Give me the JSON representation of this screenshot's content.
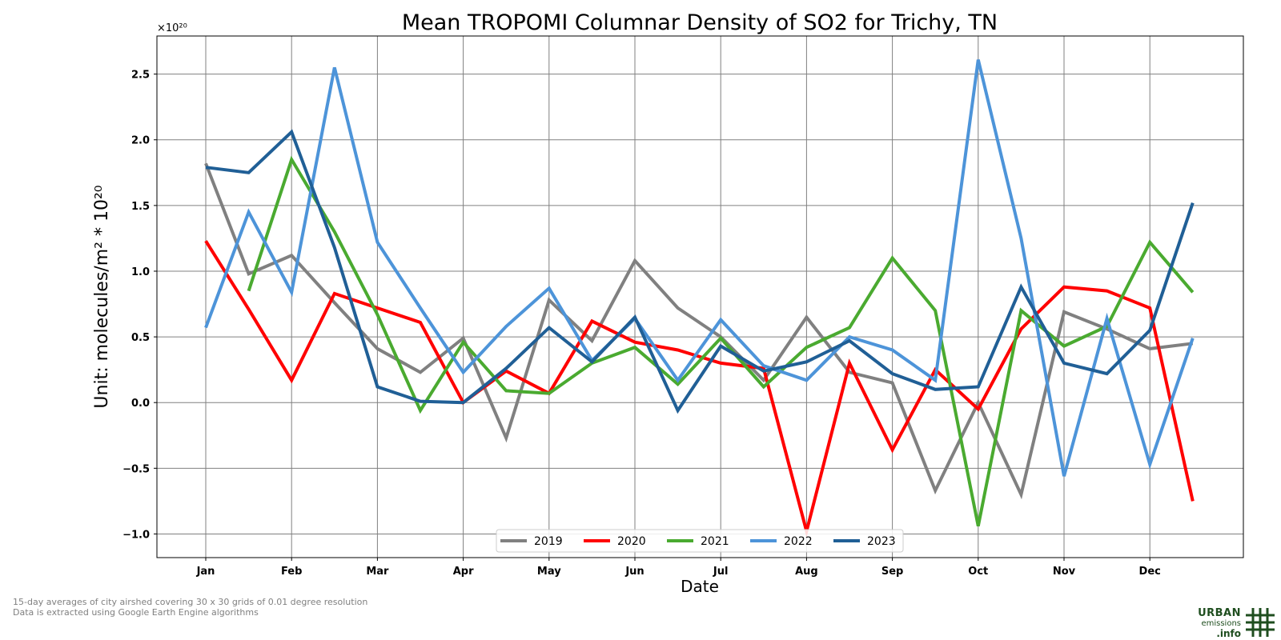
{
  "chart_data": {
    "type": "line",
    "title": "Mean TROPOMI Columnar Density of SO2 for Trichy, TN",
    "xlabel": "Date",
    "ylabel": "Unit: molecules/m² * 10²⁰",
    "scale_label": "×10²⁰",
    "ylim": [
      -1.18,
      2.79
    ],
    "y_ticks": [
      -1.0,
      -0.5,
      0.0,
      0.5,
      1.0,
      1.5,
      2.0,
      2.5
    ],
    "y_tick_labels": [
      "−1.0",
      "−0.5",
      "0.0",
      "0.5",
      "1.0",
      "1.5",
      "2.0",
      "2.5"
    ],
    "x_ticks": [
      "Jan",
      "Feb",
      "Mar",
      "Apr",
      "May",
      "Jun",
      "Jul",
      "Aug",
      "Sep",
      "Oct",
      "Nov",
      "Dec"
    ],
    "x_periods": [
      "Jan",
      "Jan 16",
      "Feb",
      "Feb 16",
      "Mar",
      "Mar 16",
      "Apr",
      "Apr 16",
      "May",
      "May 16",
      "Jun",
      "Jun 16",
      "Jul",
      "Jul 16",
      "Aug",
      "Aug 16",
      "Sep",
      "Sep 16",
      "Oct",
      "Oct 16",
      "Nov",
      "Nov 16",
      "Dec",
      "Dec 16"
    ],
    "grid": true,
    "legend_position": "bottom-center",
    "series": [
      {
        "name": "2019",
        "color": "#808080",
        "values": [
          1.82,
          0.98,
          1.12,
          0.76,
          0.41,
          0.23,
          0.49,
          -0.27,
          0.78,
          0.47,
          1.08,
          0.72,
          0.5,
          0.17,
          0.65,
          0.23,
          0.15,
          -0.67,
          0.0,
          -0.7,
          0.69,
          0.56,
          0.41,
          0.45
        ]
      },
      {
        "name": "2020",
        "color": "#ff0000",
        "values": [
          1.23,
          0.71,
          0.17,
          0.83,
          0.72,
          0.61,
          0.0,
          0.24,
          0.07,
          0.62,
          0.46,
          0.4,
          0.3,
          0.26,
          -0.98,
          0.3,
          -0.36,
          0.25,
          -0.05,
          0.56,
          0.88,
          0.85,
          0.72,
          -0.75
        ]
      },
      {
        "name": "2021",
        "color": "#4aaa30",
        "values": [
          null,
          0.85,
          1.85,
          1.3,
          0.67,
          -0.06,
          0.46,
          0.09,
          0.07,
          0.3,
          0.42,
          0.14,
          0.49,
          0.12,
          0.42,
          0.57,
          1.1,
          0.7,
          -0.94,
          0.7,
          0.43,
          0.58,
          1.22,
          0.84
        ]
      },
      {
        "name": "2022",
        "color": "#4d94d9",
        "values": [
          0.57,
          1.45,
          0.84,
          2.55,
          1.22,
          0.72,
          0.23,
          0.58,
          0.87,
          0.32,
          0.64,
          0.17,
          0.63,
          0.28,
          0.17,
          0.5,
          0.4,
          0.17,
          2.61,
          1.25,
          -0.56,
          0.64,
          -0.47,
          0.49
        ]
      },
      {
        "name": "2023",
        "color": "#205f96",
        "values": [
          1.79,
          1.75,
          2.06,
          1.18,
          0.12,
          0.01,
          0.0,
          0.26,
          0.57,
          0.31,
          0.65,
          -0.06,
          0.43,
          0.24,
          0.31,
          0.47,
          0.22,
          0.1,
          0.12,
          0.88,
          0.3,
          0.22,
          0.55,
          1.52
        ]
      }
    ]
  },
  "footer": {
    "note_line1": "15-day averages of city airshed covering 30 x 30 grids of 0.01 degree resolution",
    "note_line2": "Data is extracted using Google Earth Engine algorithms"
  },
  "logo": {
    "line1": "URBAN",
    "line2": "emissions",
    "line3": ".info",
    "color": "#1f4e1f"
  }
}
